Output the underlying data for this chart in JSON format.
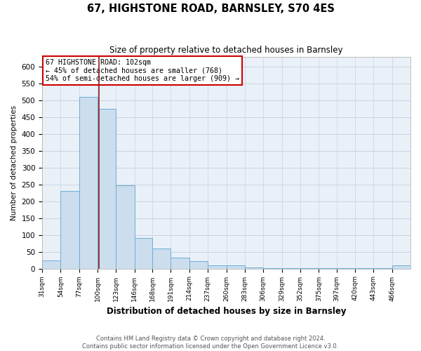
{
  "title": "67, HIGHSTONE ROAD, BARNSLEY, S70 4ES",
  "subtitle": "Size of property relative to detached houses in Barnsley",
  "xlabel": "Distribution of detached houses by size in Barnsley",
  "ylabel": "Number of detached properties",
  "bar_color": "#ccdded",
  "bar_edge_color": "#6aafd6",
  "grid_color": "#c8d4e0",
  "background_color": "#eaf0f8",
  "vline_x": 102,
  "vline_color": "#8b1a1a",
  "annotation_text": "67 HIGHSTONE ROAD: 102sqm\n← 45% of detached houses are smaller (768)\n54% of semi-detached houses are larger (909) →",
  "annotation_box_color": "#ffffff",
  "annotation_box_edge": "#cc0000",
  "bins": [
    31,
    54,
    77,
    100,
    123,
    146,
    168,
    191,
    214,
    237,
    260,
    283,
    306,
    329,
    352,
    375,
    397,
    420,
    443,
    466,
    489
  ],
  "counts": [
    25,
    230,
    510,
    475,
    247,
    90,
    60,
    32,
    22,
    10,
    10,
    3,
    2,
    1,
    2,
    1,
    2,
    1,
    2,
    10
  ],
  "ylim": [
    0,
    630
  ],
  "yticks": [
    0,
    50,
    100,
    150,
    200,
    250,
    300,
    350,
    400,
    450,
    500,
    550,
    600
  ],
  "footer_text": "Contains HM Land Registry data © Crown copyright and database right 2024.\nContains public sector information licensed under the Open Government Licence v3.0.",
  "figsize": [
    6.0,
    5.0
  ],
  "dpi": 100
}
